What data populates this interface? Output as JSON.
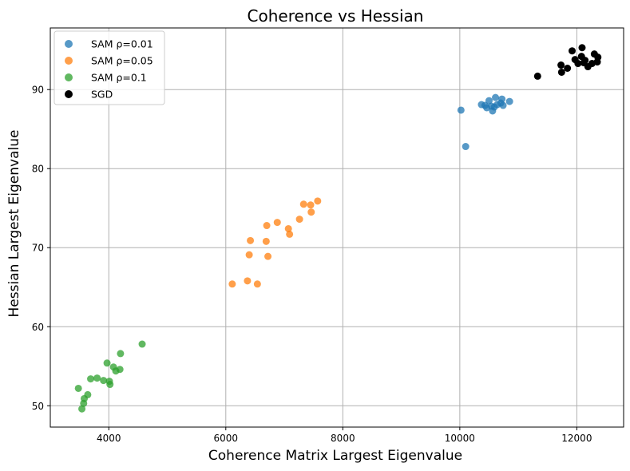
{
  "chart_data": {
    "type": "scatter",
    "title": "Coherence vs Hessian",
    "xlabel": "Coherence Matrix Largest Eigenvalue",
    "ylabel": "Hessian Largest Eigenvalue",
    "xlim": [
      3000,
      12800
    ],
    "ylim": [
      47.3,
      97.8
    ],
    "xticks": [
      4000,
      6000,
      8000,
      10000,
      12000
    ],
    "yticks": [
      50,
      60,
      70,
      80,
      90
    ],
    "xtick_labels": [
      "4000",
      "6000",
      "8000",
      "10000",
      "12000"
    ],
    "ytick_labels": [
      "50",
      "60",
      "70",
      "80",
      "90"
    ],
    "grid": true,
    "legend_position": "top-left",
    "series": [
      {
        "name": "SAM ρ=0.01",
        "color": "#1f77b4",
        "opacity": 0.75,
        "points": [
          [
            10020,
            87.4
          ],
          [
            10100,
            82.8
          ],
          [
            10370,
            88.1
          ],
          [
            10430,
            88.0
          ],
          [
            10460,
            87.7
          ],
          [
            10500,
            88.6
          ],
          [
            10540,
            87.9
          ],
          [
            10560,
            87.3
          ],
          [
            10590,
            87.8
          ],
          [
            10610,
            89.0
          ],
          [
            10640,
            88.1
          ],
          [
            10700,
            88.3
          ],
          [
            10720,
            88.8
          ],
          [
            10740,
            88.0
          ],
          [
            10850,
            88.5
          ]
        ]
      },
      {
        "name": "SAM ρ=0.05",
        "color": "#ff7f0e",
        "opacity": 0.75,
        "points": [
          [
            6110,
            65.4
          ],
          [
            6370,
            65.8
          ],
          [
            6400,
            69.1
          ],
          [
            6420,
            70.9
          ],
          [
            6540,
            65.4
          ],
          [
            6690,
            70.8
          ],
          [
            6700,
            72.8
          ],
          [
            6720,
            68.9
          ],
          [
            6880,
            73.2
          ],
          [
            7070,
            72.4
          ],
          [
            7090,
            71.7
          ],
          [
            7260,
            73.6
          ],
          [
            7330,
            75.5
          ],
          [
            7450,
            75.4
          ],
          [
            7460,
            74.5
          ],
          [
            7570,
            75.9
          ]
        ]
      },
      {
        "name": "SAM ρ=0.1",
        "color": "#2ca02c",
        "opacity": 0.75,
        "points": [
          [
            3480,
            52.2
          ],
          [
            3540,
            49.6
          ],
          [
            3570,
            50.3
          ],
          [
            3580,
            50.9
          ],
          [
            3640,
            51.4
          ],
          [
            3690,
            53.4
          ],
          [
            3800,
            53.5
          ],
          [
            3910,
            53.2
          ],
          [
            3970,
            55.4
          ],
          [
            4010,
            53.1
          ],
          [
            4020,
            52.7
          ],
          [
            4080,
            54.9
          ],
          [
            4120,
            54.4
          ],
          [
            4190,
            54.6
          ],
          [
            4200,
            56.6
          ],
          [
            4570,
            57.8
          ]
        ]
      },
      {
        "name": "SGD",
        "color": "#000000",
        "opacity": 1,
        "points": [
          [
            11330,
            91.7
          ],
          [
            11730,
            93.1
          ],
          [
            11740,
            92.2
          ],
          [
            11840,
            92.7
          ],
          [
            11920,
            94.9
          ],
          [
            11970,
            93.8
          ],
          [
            12020,
            93.3
          ],
          [
            12080,
            94.2
          ],
          [
            12090,
            95.3
          ],
          [
            12120,
            93.4
          ],
          [
            12140,
            93.7
          ],
          [
            12190,
            92.9
          ],
          [
            12260,
            93.3
          ],
          [
            12300,
            94.5
          ],
          [
            12350,
            93.5
          ],
          [
            12360,
            94.1
          ]
        ]
      }
    ]
  }
}
